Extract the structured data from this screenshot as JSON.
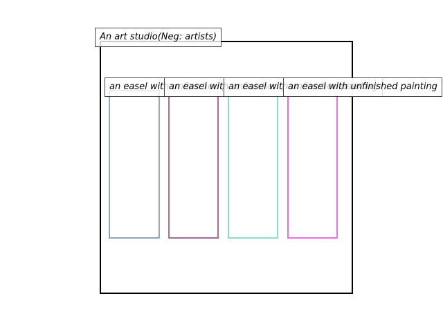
{
  "scene": {
    "caption": "An art studio(Neg: artists)"
  },
  "objects": [
    {
      "label": "an easel with unfinished painting",
      "color": "#94a3c2"
    },
    {
      "label": "an easel with unfinished painting",
      "color": "#a9699a"
    },
    {
      "label": "an easel with unfinished painting",
      "color": "#8fd9d4"
    },
    {
      "label": "an easel with unfinished painting",
      "color": "#ec6de4"
    }
  ]
}
